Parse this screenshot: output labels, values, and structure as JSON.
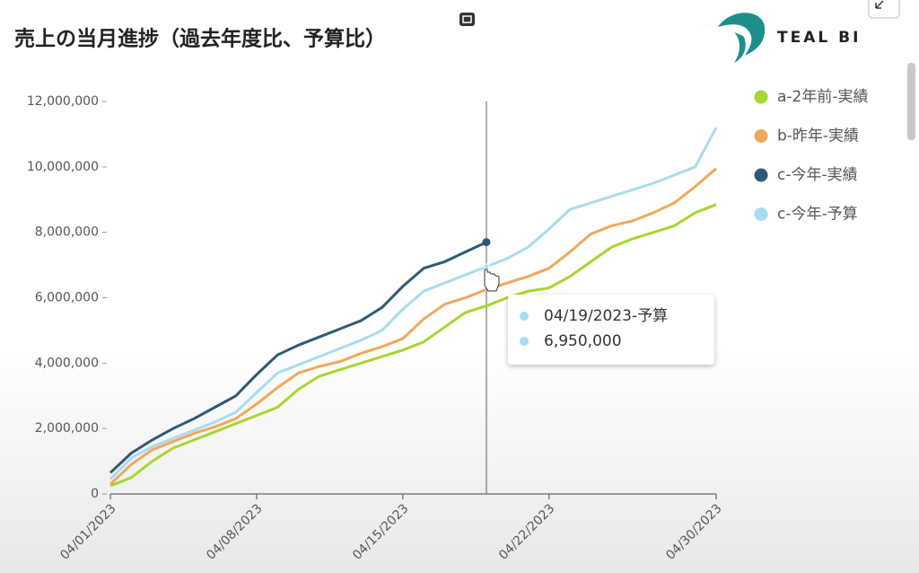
{
  "chart_data": {
    "type": "line",
    "title": "売上の当月進捗（過去年度比、予算比）",
    "brand": "TEAL BI",
    "categories": [
      "04/01/2023",
      "04/02/2023",
      "04/03/2023",
      "04/04/2023",
      "04/05/2023",
      "04/06/2023",
      "04/07/2023",
      "04/08/2023",
      "04/09/2023",
      "04/10/2023",
      "04/11/2023",
      "04/12/2023",
      "04/13/2023",
      "04/14/2023",
      "04/15/2023",
      "04/16/2023",
      "04/17/2023",
      "04/18/2023",
      "04/19/2023",
      "04/20/2023",
      "04/21/2023",
      "04/22/2023",
      "04/23/2023",
      "04/24/2023",
      "04/25/2023",
      "04/26/2023",
      "04/27/2023",
      "04/28/2023",
      "04/29/2023",
      "04/30/2023"
    ],
    "xticks": [
      "04/01/2023",
      "04/08/2023",
      "04/15/2023",
      "04/22/2023",
      "04/30/2023"
    ],
    "ylim": [
      0,
      12000000
    ],
    "yticks": [
      0,
      {
        "value": 2000000,
        "label": "2,000,000"
      },
      {
        "value": 4000000,
        "label": "4,000,000"
      },
      {
        "value": 6000000,
        "label": "6,000,000"
      },
      {
        "value": 8000000,
        "label": "8,000,000"
      },
      {
        "value": 10000000,
        "label": "10,000,000"
      },
      {
        "value": 12000000,
        "label": "12,000,000"
      }
    ],
    "grid": false,
    "legend": "right",
    "series": [
      {
        "name": "a-2年前-実績",
        "color": "#a6d630",
        "values": [
          250000,
          500000,
          1000000,
          1400000,
          1650000,
          1900000,
          2150000,
          2400000,
          2650000,
          3200000,
          3600000,
          3800000,
          4000000,
          4200000,
          4400000,
          4650000,
          5100000,
          5550000,
          5750000,
          6000000,
          6200000,
          6300000,
          6650000,
          7100000,
          7550000,
          7800000,
          8000000,
          8200000,
          8600000,
          8850000
        ]
      },
      {
        "name": "b-昨年-実績",
        "color": "#f0a85a",
        "values": [
          300000,
          900000,
          1350000,
          1600000,
          1850000,
          2050000,
          2300000,
          2750000,
          3250000,
          3700000,
          3900000,
          4050000,
          4300000,
          4500000,
          4750000,
          5350000,
          5800000,
          6000000,
          6250000,
          6450000,
          6650000,
          6900000,
          7400000,
          7950000,
          8200000,
          8350000,
          8600000,
          8900000,
          9400000,
          9950000
        ]
      },
      {
        "name": "c-今年-実績",
        "color": "#2d5a73",
        "values": [
          650000,
          1250000,
          1650000,
          2000000,
          2300000,
          2650000,
          3000000,
          3650000,
          4250000,
          4550000,
          4800000,
          5050000,
          5300000,
          5700000,
          6350000,
          6900000,
          7100000,
          7400000,
          7700000,
          null,
          null,
          null,
          null,
          null,
          null,
          null,
          null,
          null,
          null,
          null
        ]
      },
      {
        "name": "c-今年-予算",
        "color": "#a8dcef",
        "values": [
          450000,
          1100000,
          1450000,
          1700000,
          1950000,
          2200000,
          2500000,
          3100000,
          3700000,
          3950000,
          4200000,
          4450000,
          4700000,
          5000000,
          5650000,
          6200000,
          6450000,
          6700000,
          6950000,
          7200000,
          7550000,
          8100000,
          8700000,
          8900000,
          9100000,
          9300000,
          9500000,
          9750000,
          10000000,
          11200000
        ]
      }
    ],
    "tooltip": {
      "title": "04/19/2023-予算",
      "value": 6950000,
      "value_label": "6,950,000"
    }
  }
}
